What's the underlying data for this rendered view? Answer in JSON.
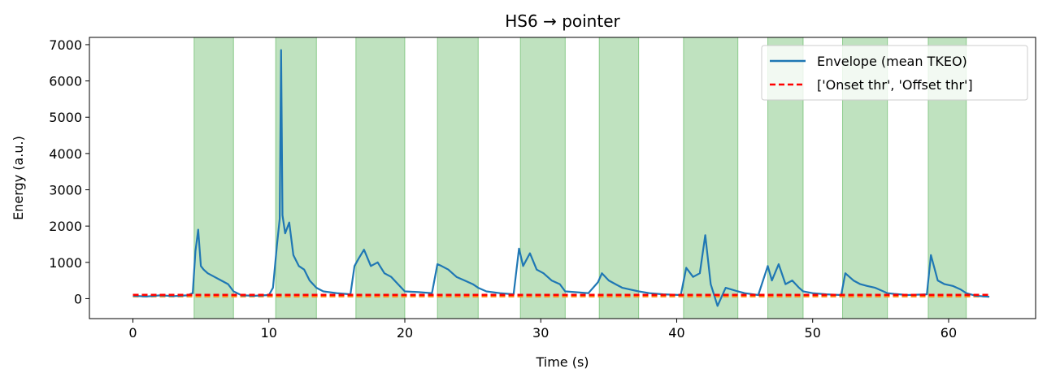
{
  "chart_data": {
    "type": "line",
    "title": "HS6 → pointer",
    "xlabel": "Time (s)",
    "ylabel": "Energy (a.u.)",
    "xlim": [
      -3.2,
      66.4
    ],
    "ylim": [
      -550,
      7200
    ],
    "xticks": [
      0,
      10,
      20,
      30,
      40,
      50,
      60
    ],
    "yticks": [
      0,
      1000,
      2000,
      3000,
      4000,
      5000,
      6000,
      7000
    ],
    "grid": false,
    "legend_position": "top-right",
    "colors": {
      "envelope": "#1f77b4",
      "onset": "#ff0000",
      "offset": "#ff7f0e",
      "shade": "#2ca02c"
    },
    "active_segments": [
      [
        4.5,
        7.4
      ],
      [
        10.5,
        13.5
      ],
      [
        16.4,
        20.0
      ],
      [
        22.4,
        25.4
      ],
      [
        28.5,
        31.8
      ],
      [
        34.3,
        37.2
      ],
      [
        40.5,
        44.5
      ],
      [
        46.7,
        49.3
      ],
      [
        52.2,
        55.5
      ],
      [
        58.5,
        61.3
      ]
    ],
    "thresholds": {
      "onset": 105,
      "offset": 62
    },
    "series": [
      {
        "name": "Envelope (mean TKEO)",
        "x": [
          0,
          1,
          2,
          3,
          4,
          4.4,
          4.6,
          4.8,
          5.0,
          5.2,
          5.5,
          6.0,
          6.5,
          7.0,
          7.4,
          8,
          9,
          10,
          10.3,
          10.6,
          10.8,
          10.9,
          11.0,
          11.2,
          11.5,
          11.8,
          12.2,
          12.6,
          13.0,
          13.5,
          14,
          15,
          16,
          16.3,
          16.6,
          17.0,
          17.5,
          18.0,
          18.5,
          19.0,
          19.5,
          20.0,
          21,
          22,
          22.4,
          22.7,
          23.2,
          23.8,
          24.4,
          25.0,
          25.4,
          26,
          27,
          28,
          28.4,
          28.7,
          29.2,
          29.7,
          30.2,
          30.8,
          31.4,
          31.8,
          32.5,
          33.5,
          34.2,
          34.5,
          35.0,
          35.5,
          36.0,
          36.6,
          37.2,
          38,
          39,
          40.3,
          40.7,
          41.2,
          41.7,
          42.1,
          42.5,
          43.0,
          43.6,
          44.5,
          45,
          46,
          46.7,
          47.0,
          47.5,
          48.0,
          48.5,
          49.0,
          49.3,
          50,
          51,
          52.1,
          52.4,
          53.0,
          53.5,
          54.0,
          54.6,
          55.2,
          55.5,
          56,
          57,
          58.4,
          58.7,
          59.2,
          59.7,
          60.3,
          60.9,
          61.3,
          62,
          63
        ],
        "y": [
          80,
          60,
          90,
          70,
          90,
          150,
          1300,
          1900,
          900,
          800,
          700,
          600,
          500,
          400,
          200,
          90,
          80,
          100,
          300,
          1500,
          2200,
          6850,
          2300,
          1800,
          2100,
          1200,
          900,
          800,
          500,
          300,
          200,
          150,
          120,
          900,
          1100,
          1350,
          900,
          1000,
          700,
          600,
          400,
          200,
          180,
          150,
          950,
          900,
          800,
          600,
          500,
          400,
          300,
          200,
          150,
          120,
          1380,
          900,
          1250,
          800,
          700,
          500,
          400,
          200,
          180,
          150,
          450,
          700,
          500,
          400,
          300,
          250,
          200,
          150,
          120,
          100,
          850,
          600,
          700,
          1750,
          400,
          -200,
          300,
          200,
          150,
          100,
          900,
          500,
          950,
          400,
          500,
          300,
          200,
          150,
          120,
          100,
          700,
          500,
          400,
          350,
          300,
          200,
          150,
          130,
          100,
          120,
          1200,
          500,
          400,
          350,
          250,
          150,
          80,
          50
        ]
      },
      {
        "name": "['Onset thr', 'Offset thr']",
        "x": [
          0,
          63
        ],
        "y": [
          105,
          105
        ]
      }
    ]
  }
}
